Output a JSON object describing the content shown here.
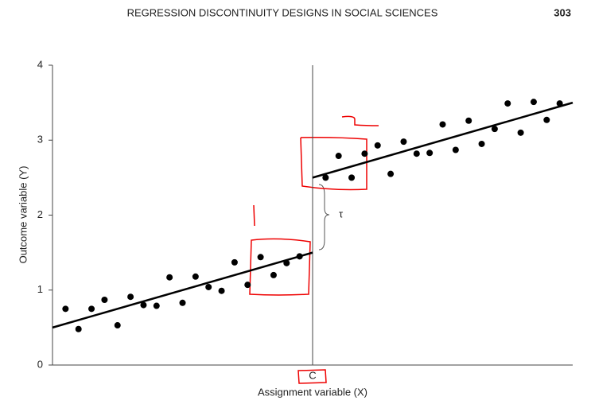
{
  "header": {
    "title": "REGRESSION DISCONTINUITY DESIGNS IN SOCIAL SCIENCES",
    "page": "303"
  },
  "chart_data": {
    "type": "scatter",
    "x_label": "Assignment variable (X)",
    "y_label": "Outcome variable (Y)",
    "annotation": "τ",
    "xlim": [
      0,
      40
    ],
    "ylim": [
      0,
      4
    ],
    "yticks": [
      0,
      1,
      2,
      3,
      4
    ],
    "xticks": [
      {
        "value": 20,
        "label": "C"
      }
    ],
    "color": "#000000",
    "points": {
      "x": [
        1,
        2,
        3,
        4,
        5,
        6,
        7,
        8,
        9,
        10,
        11,
        12,
        13,
        14,
        15,
        16,
        17,
        18,
        19,
        21,
        22,
        23,
        24,
        25,
        26,
        27,
        28,
        29,
        30,
        31,
        32,
        33,
        34,
        35,
        36,
        37,
        38,
        39
      ],
      "y": [
        0.75,
        0.48,
        0.75,
        0.87,
        0.53,
        0.91,
        0.8,
        0.79,
        1.17,
        0.83,
        1.18,
        1.04,
        0.99,
        1.37,
        1.07,
        1.44,
        1.2,
        1.36,
        1.45,
        2.5,
        2.79,
        2.5,
        2.82,
        2.93,
        2.55,
        2.98,
        2.82,
        2.83,
        3.21,
        2.87,
        3.26,
        2.95,
        3.15,
        3.49,
        3.1,
        3.51,
        3.27,
        3.49
      ]
    },
    "lines": [
      {
        "x": [
          0,
          20
        ],
        "y": [
          0.5,
          1.5
        ]
      },
      {
        "x": [
          20,
          40
        ],
        "y": [
          2.5,
          3.5
        ]
      }
    ]
  }
}
